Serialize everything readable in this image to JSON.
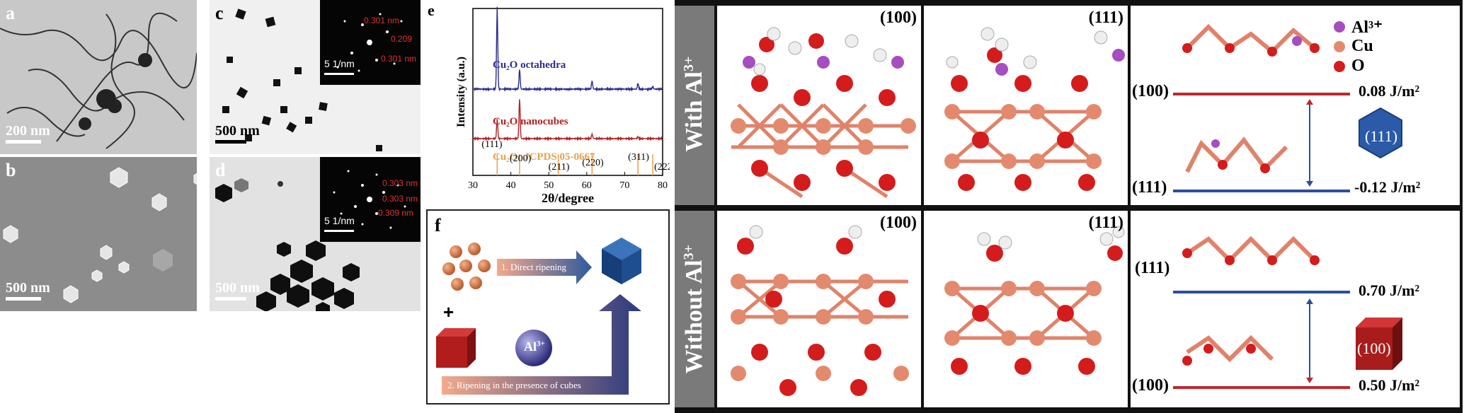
{
  "panels": {
    "a": {
      "letter": "a",
      "scale": "200 nm"
    },
    "b": {
      "letter": "b",
      "scale": "500 nm"
    },
    "c": {
      "letter": "c",
      "scale": "500 nm",
      "inset_scale": "5 1/nm",
      "d_spacings": [
        "0.301 nm",
        "0.209",
        "0.301 nm"
      ]
    },
    "d": {
      "letter": "d",
      "scale": "500 nm",
      "inset_scale": "5 1/nm",
      "d_spacings": [
        "0.303 nm",
        "0.303 nm",
        "0.309 nm"
      ]
    },
    "e": {
      "letter": "e"
    },
    "f": {
      "letter": "f",
      "step1": "1. Direct ripening",
      "step2": "2. Ripening in the presence of cubes",
      "ion": "Al",
      "ion_sup": "3+",
      "plus": "+"
    }
  },
  "chart_data": {
    "type": "line",
    "xlabel": "2θ/degree",
    "ylabel": "Intensity (a.u.)",
    "xlim": [
      30,
      80
    ],
    "xticks": [
      "30",
      "40",
      "50",
      "60",
      "70",
      "80"
    ],
    "series": [
      {
        "name": "Cu2O octahedra",
        "label": "Cu₂O octahedra",
        "color": "#2b2b8f",
        "peaks": [
          [
            36.4,
            1.0
          ],
          [
            42.3,
            0.24
          ],
          [
            61.4,
            0.1
          ],
          [
            73.5,
            0.07
          ],
          [
            77.4,
            0.03
          ]
        ]
      },
      {
        "name": "Cu2O nanocubes",
        "label": "Cu₂O nanocubes",
        "color": "#b22222",
        "peaks": [
          [
            36.4,
            0.3
          ],
          [
            42.3,
            0.62
          ],
          [
            61.4,
            0.07
          ],
          [
            73.5,
            0.03
          ]
        ]
      }
    ],
    "reference": {
      "label": "Cu₂O: JCPDS 05-0667",
      "color": "#e8a04b",
      "peaks": [
        {
          "x": 36.4,
          "label": "(111)"
        },
        {
          "x": 42.3,
          "label": "(200)"
        },
        {
          "x": 52.5,
          "label": "(211)"
        },
        {
          "x": 61.4,
          "label": "(220)"
        },
        {
          "x": 73.5,
          "label": "(311)"
        },
        {
          "x": 77.4,
          "label": "(222)"
        }
      ]
    }
  },
  "dft": {
    "row_with": "With Al",
    "row_without": "Without Al",
    "sup": "3+",
    "facets": {
      "f100": "(100)",
      "f111": "(111)"
    },
    "legend": [
      {
        "label": "Al³⁺",
        "color": "#a64dbf"
      },
      {
        "label": "Cu",
        "color": "#e38a6e"
      },
      {
        "label": "O",
        "color": "#d41c1c"
      }
    ],
    "energies": {
      "with_100": "0.08 J/m²",
      "with_111": "-0.12 J/m²",
      "without_111": "0.70 J/m²",
      "without_100": "0.50 J/m²"
    },
    "shapes": {
      "oct": "(111)",
      "cube": "(100)"
    }
  }
}
